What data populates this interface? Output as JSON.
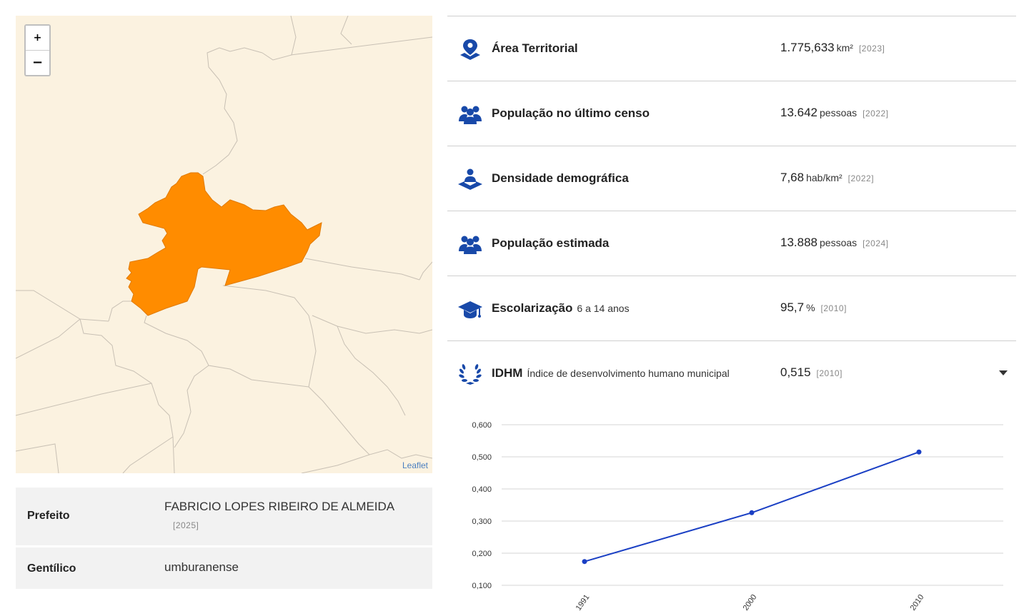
{
  "map": {
    "zoom_in": "+",
    "zoom_out": "−",
    "attribution": "Leaflet",
    "colors": {
      "background": "#fbf2e0",
      "highlight": "#ff8c00",
      "border": "#c8c0b4"
    }
  },
  "info": [
    {
      "key": "Prefeito",
      "value": "FABRICIO LOPES RIBEIRO DE ALMEIDA",
      "year": "[2025]"
    },
    {
      "key": "Gentílico",
      "value": "umburanense",
      "year": ""
    }
  ],
  "indicators": [
    {
      "icon": "map-pin-icon",
      "label": "Área Territorial",
      "sub": "",
      "value": "1.775,633",
      "unit": "km²",
      "year": "[2023]"
    },
    {
      "icon": "people-group-icon",
      "label": "População no último censo",
      "sub": "",
      "value": "13.642",
      "unit": "pessoas",
      "year": "[2022]"
    },
    {
      "icon": "person-area-icon",
      "label": "Densidade demográfica",
      "sub": "",
      "value": "7,68",
      "unit": "hab/km²",
      "year": "[2022]"
    },
    {
      "icon": "people-group-icon",
      "label": "População estimada",
      "sub": "",
      "value": "13.888",
      "unit": "pessoas",
      "year": "[2024]"
    },
    {
      "icon": "graduation-cap-icon",
      "label": "Escolarização",
      "sub": "6 a 14 anos",
      "value": "95,7",
      "unit": "%",
      "year": "[2010]"
    },
    {
      "icon": "laurel-wreath-icon",
      "label": "IDHM",
      "sub": "Índice de desenvolvimento humano municipal",
      "value": "0,515",
      "unit": "",
      "year": "[2010]"
    }
  ],
  "chart_data": {
    "type": "line",
    "x": [
      "1991",
      "2000",
      "2010"
    ],
    "series": [
      {
        "values": [
          0.174,
          0.326,
          0.515
        ]
      }
    ],
    "yticks": [
      "0,600",
      "0,500",
      "0,400",
      "0,300",
      "0,200",
      "0,100"
    ],
    "ylim": [
      0.1,
      0.6
    ],
    "grid": true,
    "color": "#1a3fc4"
  }
}
